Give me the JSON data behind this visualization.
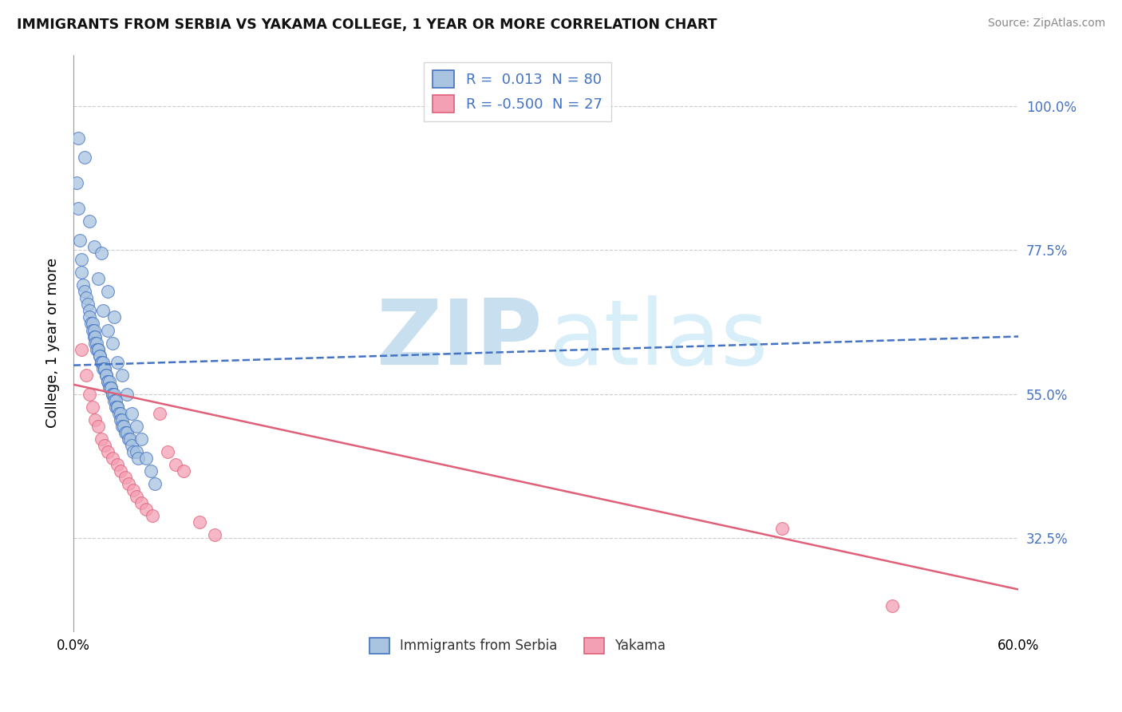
{
  "title": "IMMIGRANTS FROM SERBIA VS YAKAMA COLLEGE, 1 YEAR OR MORE CORRELATION CHART",
  "source": "Source: ZipAtlas.com",
  "ylabel": "College, 1 year or more",
  "blue_label": "Immigrants from Serbia",
  "pink_label": "Yakama",
  "blue_R": 0.013,
  "blue_N": 80,
  "pink_R": -0.5,
  "pink_N": 27,
  "blue_face_color": "#a8c4e0",
  "blue_edge_color": "#4472c4",
  "pink_face_color": "#f4a0b4",
  "pink_edge_color": "#e0607a",
  "blue_line_color": "#4472c4",
  "pink_line_color": "#e0607a",
  "watermark_zip_color": "#c8dff0",
  "watermark_atlas_color": "#d8eef8",
  "xmin": 0.0,
  "xmax": 0.6,
  "ymin": 0.18,
  "ymax": 1.08,
  "ytick_values": [
    1.0,
    0.775,
    0.55,
    0.325
  ],
  "ytick_labels": [
    "100.0%",
    "77.5%",
    "55.0%",
    "32.5%"
  ],
  "xtick_values": [
    0.0,
    0.6
  ],
  "xtick_labels": [
    "0.0%",
    "60.0%"
  ],
  "blue_trend_y0": 0.595,
  "blue_trend_y1": 0.64,
  "pink_trend_y0": 0.565,
  "pink_trend_y1": 0.245,
  "blue_scatter_x": [
    0.002,
    0.003,
    0.004,
    0.005,
    0.005,
    0.006,
    0.007,
    0.008,
    0.009,
    0.01,
    0.01,
    0.011,
    0.012,
    0.012,
    0.013,
    0.013,
    0.014,
    0.014,
    0.015,
    0.015,
    0.016,
    0.016,
    0.017,
    0.017,
    0.018,
    0.018,
    0.019,
    0.019,
    0.02,
    0.02,
    0.021,
    0.021,
    0.022,
    0.022,
    0.023,
    0.023,
    0.024,
    0.024,
    0.025,
    0.025,
    0.026,
    0.026,
    0.027,
    0.027,
    0.028,
    0.028,
    0.029,
    0.03,
    0.03,
    0.031,
    0.031,
    0.032,
    0.033,
    0.034,
    0.035,
    0.036,
    0.037,
    0.038,
    0.04,
    0.041,
    0.003,
    0.007,
    0.01,
    0.013,
    0.016,
    0.019,
    0.022,
    0.025,
    0.028,
    0.031,
    0.034,
    0.037,
    0.04,
    0.043,
    0.046,
    0.049,
    0.052,
    0.018,
    0.022,
    0.026
  ],
  "blue_scatter_y": [
    0.88,
    0.84,
    0.79,
    0.76,
    0.74,
    0.72,
    0.71,
    0.7,
    0.69,
    0.68,
    0.67,
    0.66,
    0.66,
    0.65,
    0.65,
    0.64,
    0.64,
    0.63,
    0.63,
    0.62,
    0.62,
    0.62,
    0.61,
    0.61,
    0.6,
    0.6,
    0.6,
    0.59,
    0.59,
    0.59,
    0.58,
    0.58,
    0.57,
    0.57,
    0.57,
    0.56,
    0.56,
    0.56,
    0.55,
    0.55,
    0.55,
    0.54,
    0.54,
    0.53,
    0.53,
    0.53,
    0.52,
    0.52,
    0.51,
    0.51,
    0.5,
    0.5,
    0.49,
    0.49,
    0.48,
    0.48,
    0.47,
    0.46,
    0.46,
    0.45,
    0.95,
    0.92,
    0.82,
    0.78,
    0.73,
    0.68,
    0.65,
    0.63,
    0.6,
    0.58,
    0.55,
    0.52,
    0.5,
    0.48,
    0.45,
    0.43,
    0.41,
    0.77,
    0.71,
    0.67
  ],
  "pink_scatter_x": [
    0.005,
    0.008,
    0.01,
    0.012,
    0.014,
    0.016,
    0.018,
    0.02,
    0.022,
    0.025,
    0.028,
    0.03,
    0.033,
    0.035,
    0.038,
    0.04,
    0.043,
    0.046,
    0.05,
    0.055,
    0.06,
    0.065,
    0.07,
    0.08,
    0.09,
    0.45,
    0.52
  ],
  "pink_scatter_y": [
    0.62,
    0.58,
    0.55,
    0.53,
    0.51,
    0.5,
    0.48,
    0.47,
    0.46,
    0.45,
    0.44,
    0.43,
    0.42,
    0.41,
    0.4,
    0.39,
    0.38,
    0.37,
    0.36,
    0.52,
    0.46,
    0.44,
    0.43,
    0.35,
    0.33,
    0.34,
    0.22
  ]
}
